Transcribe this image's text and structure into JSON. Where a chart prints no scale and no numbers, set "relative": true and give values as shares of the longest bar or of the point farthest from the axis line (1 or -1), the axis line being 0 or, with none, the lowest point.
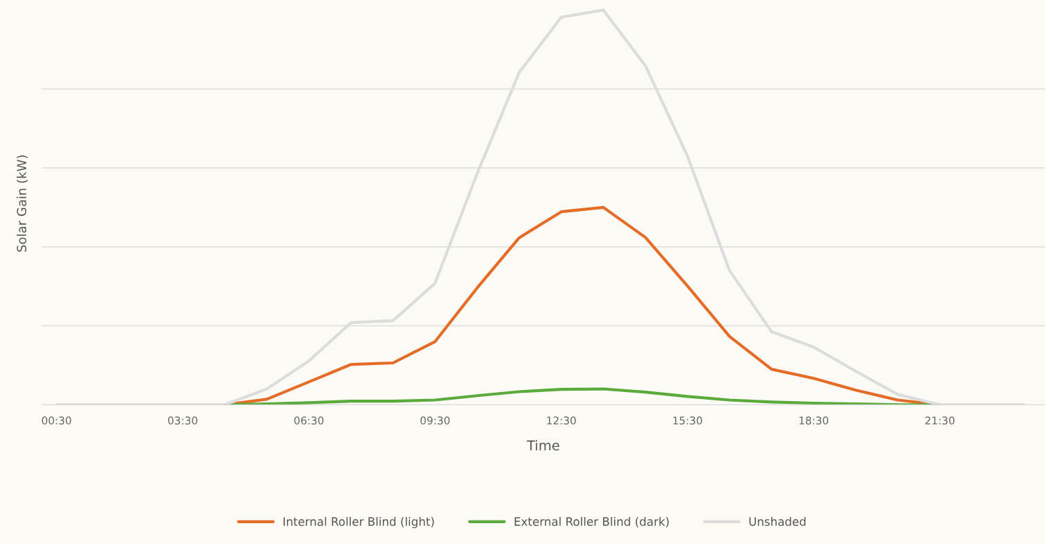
{
  "chart_data": {
    "type": "line",
    "relative": true,
    "xlabel": "Time",
    "ylabel": "Solar Gain (kW)",
    "categories": [
      "00:30",
      null,
      null,
      "03:30",
      null,
      null,
      "06:30",
      null,
      null,
      "09:30",
      null,
      null,
      "12:30",
      null,
      null,
      "15:30",
      null,
      null,
      "18:30",
      null,
      null,
      "21:30",
      null,
      null
    ],
    "series": [
      {
        "name": "Internal Roller Blind (light)",
        "color": "#e46c26",
        "values": [
          null,
          null,
          null,
          null,
          0,
          0.014,
          0.058,
          0.102,
          0.106,
          0.16,
          0.296,
          0.423,
          0.489,
          0.5,
          0.424,
          0.301,
          0.173,
          0.09,
          0.067,
          0.037,
          0.012,
          0,
          null,
          null
        ]
      },
      {
        "name": "External Roller Blind (dark)",
        "color": "#5aaa3c",
        "values": [
          null,
          null,
          null,
          null,
          0,
          0.002,
          0.005,
          0.009,
          0.009,
          0.012,
          0.023,
          0.033,
          0.039,
          0.04,
          0.032,
          0.021,
          0.012,
          0.007,
          0.004,
          0.002,
          0,
          0,
          null,
          null
        ]
      },
      {
        "name": "Unshaded",
        "color": "#dcdcdc",
        "values": [
          0,
          0,
          0,
          0,
          0,
          0.04,
          0.111,
          0.208,
          0.213,
          0.308,
          0.586,
          0.842,
          0.982,
          1.0,
          0.859,
          0.63,
          0.34,
          0.185,
          0.146,
          0.085,
          0.026,
          0,
          0,
          0
        ]
      }
    ],
    "grid": "y",
    "legend": "bottom",
    "line_style": "solid",
    "marker": "none"
  }
}
